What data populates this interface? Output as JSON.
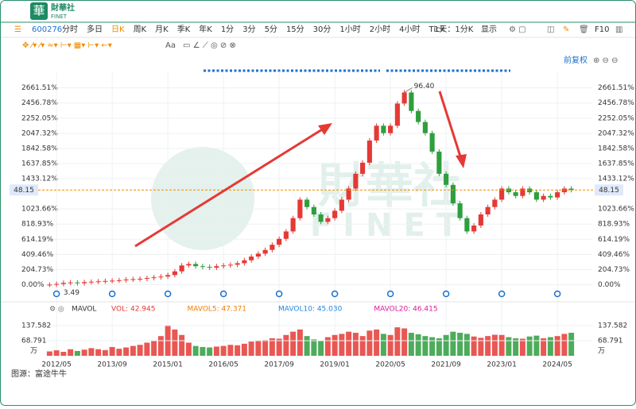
{
  "header": {
    "logo_mark": "華",
    "logo_cn": "財華社",
    "logo_en": "FINET"
  },
  "toolbar": {
    "code": "600276",
    "periods": [
      "分时",
      "多日",
      "日K",
      "周K",
      "月K",
      "季K",
      "年K",
      "1分",
      "3分",
      "5分",
      "15分",
      "30分",
      "1小时",
      "2小时",
      "4小时",
      "Tick"
    ],
    "active_period": 2,
    "period_select": "1天：1分K",
    "display": "显示",
    "f10": "F10",
    "font_button": "Aa",
    "adjust": "前复权"
  },
  "watermark": {
    "cn": "財華社",
    "en": "FINET"
  },
  "indicator_name": "MAVOL",
  "indicators": [
    {
      "text": "VOL: 42.945",
      "color": "#e53935"
    },
    {
      "text": "MAVOL5: 47.371",
      "color": "#f57c00"
    },
    {
      "text": "MAVOL10: 45.030",
      "color": "#1e88e5"
    },
    {
      "text": "MAVOL20: 46.415",
      "color": "#d81b9e"
    }
  ],
  "footer": "图源：富途牛牛",
  "chart_data": [
    {
      "type": "candlestick",
      "categories": [
        null,
        "2012/05",
        null,
        null,
        null,
        null,
        null,
        null,
        null,
        "2013/09",
        null,
        null,
        null,
        null,
        null,
        null,
        null,
        "2015/01",
        null,
        null,
        null,
        null,
        null,
        null,
        null,
        "2016/05",
        null,
        null,
        null,
        null,
        null,
        null,
        null,
        "2017/09",
        null,
        null,
        null,
        null,
        null,
        null,
        null,
        "2019/01",
        null,
        null,
        null,
        null,
        null,
        null,
        null,
        "2020/05",
        null,
        null,
        null,
        null,
        null,
        null,
        null,
        "2021/09",
        null,
        null,
        null,
        null,
        null,
        null,
        null,
        "2023/01",
        null,
        null,
        null,
        null,
        null,
        null,
        null,
        "2024/05",
        null,
        null
      ],
      "values": [
        0,
        10,
        25,
        30,
        20,
        35,
        40,
        45,
        50,
        55,
        60,
        70,
        75,
        80,
        90,
        100,
        110,
        130,
        180,
        260,
        280,
        250,
        240,
        230,
        250,
        260,
        270,
        290,
        330,
        380,
        420,
        470,
        540,
        620,
        720,
        900,
        1150,
        1050,
        950,
        850,
        900,
        1000,
        1150,
        1300,
        1500,
        1650,
        1950,
        2150,
        2050,
        2150,
        2450,
        2600,
        2350,
        2200,
        2050,
        1800,
        1500,
        1350,
        1100,
        900,
        720,
        800,
        950,
        1050,
        1150,
        1300,
        1250,
        1200,
        1300,
        1250,
        1150,
        1200,
        1180,
        1250,
        1300,
        1280
      ],
      "up_color": "#e53935",
      "down_color": "#2e9e3e",
      "ylim": [
        -210,
        2830
      ],
      "yticks": [
        {
          "value": 0,
          "label": "0.00%"
        },
        {
          "value": 204.73,
          "label": "204.73%"
        },
        {
          "value": 409.46,
          "label": "409.46%"
        },
        {
          "value": 614.19,
          "label": "614.19%"
        },
        {
          "value": 818.93,
          "label": "818.93%"
        },
        {
          "value": 1023.66,
          "label": "1023.66%"
        },
        {
          "value": 1433.12,
          "label": "1433.12%"
        },
        {
          "value": 1637.85,
          "label": "1637.85%"
        },
        {
          "value": 1842.58,
          "label": "1842.58%"
        },
        {
          "value": 2047.32,
          "label": "2047.32%"
        },
        {
          "value": 2252.05,
          "label": "2252.05%"
        },
        {
          "value": 2456.78,
          "label": "2456.78%"
        },
        {
          "value": 2661.51,
          "label": "2661.51%"
        }
      ],
      "high_label": {
        "value": 96.4,
        "label": "96.40"
      },
      "low_label": 3.49,
      "last_price": 48.15,
      "grid": true
    },
    {
      "type": "bar",
      "values": [
        20,
        25,
        18,
        30,
        22,
        28,
        35,
        30,
        26,
        40,
        32,
        38,
        45,
        50,
        60,
        70,
        90,
        140,
        120,
        95,
        60,
        45,
        40,
        38,
        42,
        45,
        50,
        48,
        55,
        65,
        70,
        72,
        80,
        78,
        95,
        110,
        120,
        90,
        75,
        70,
        85,
        95,
        100,
        110,
        105,
        90,
        115,
        120,
        100,
        95,
        130,
        125,
        105,
        98,
        90,
        85,
        80,
        95,
        110,
        105,
        100,
        88,
        82,
        90,
        96,
        95,
        85,
        80,
        78,
        88,
        92,
        80,
        85,
        90,
        100,
        105
      ],
      "ylim": [
        0,
        174
      ],
      "yticks": [
        68.791,
        137.582
      ],
      "unit": "万"
    }
  ]
}
